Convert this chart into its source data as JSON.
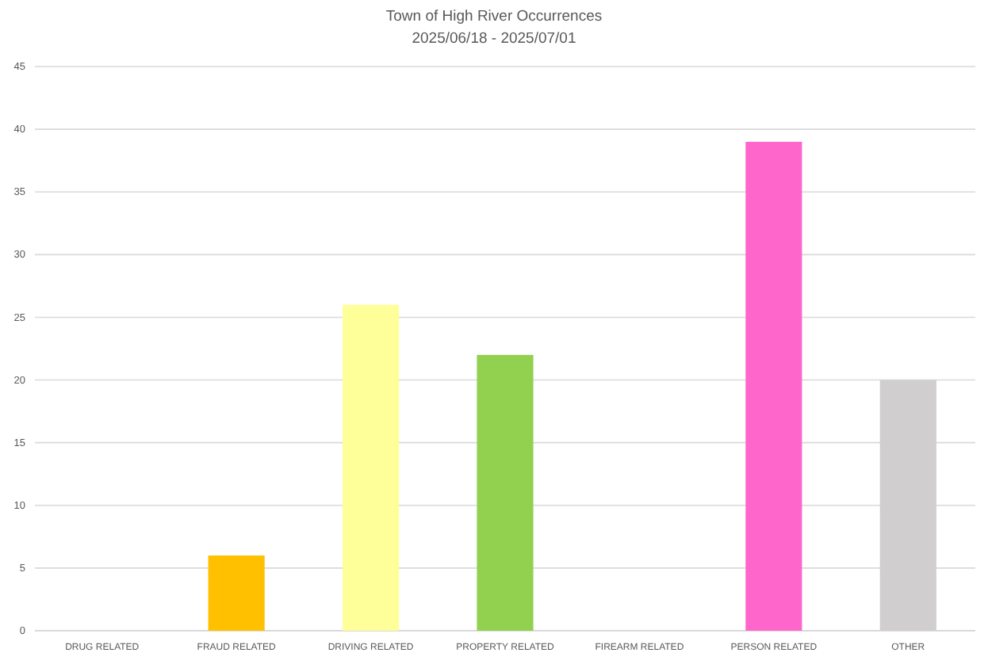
{
  "chart_data": {
    "type": "bar",
    "title": "Town of High River Occurrences",
    "subtitle": "2025/06/18 - 2025/07/01",
    "categories": [
      "DRUG RELATED",
      "FRAUD RELATED",
      "DRIVING RELATED",
      "PROPERTY RELATED",
      "FIREARM RELATED",
      "PERSON RELATED",
      "OTHER"
    ],
    "values": [
      0,
      6,
      26,
      22,
      0,
      39,
      20
    ],
    "colors": [
      "#5b9bd5",
      "#ffc000",
      "#ffff99",
      "#92d050",
      "#a5a5a5",
      "#ff66cc",
      "#d0cece"
    ],
    "ylim": [
      0,
      45
    ],
    "yticks": [
      0,
      5,
      10,
      15,
      20,
      25,
      30,
      35,
      40,
      45
    ],
    "grid": "y"
  }
}
